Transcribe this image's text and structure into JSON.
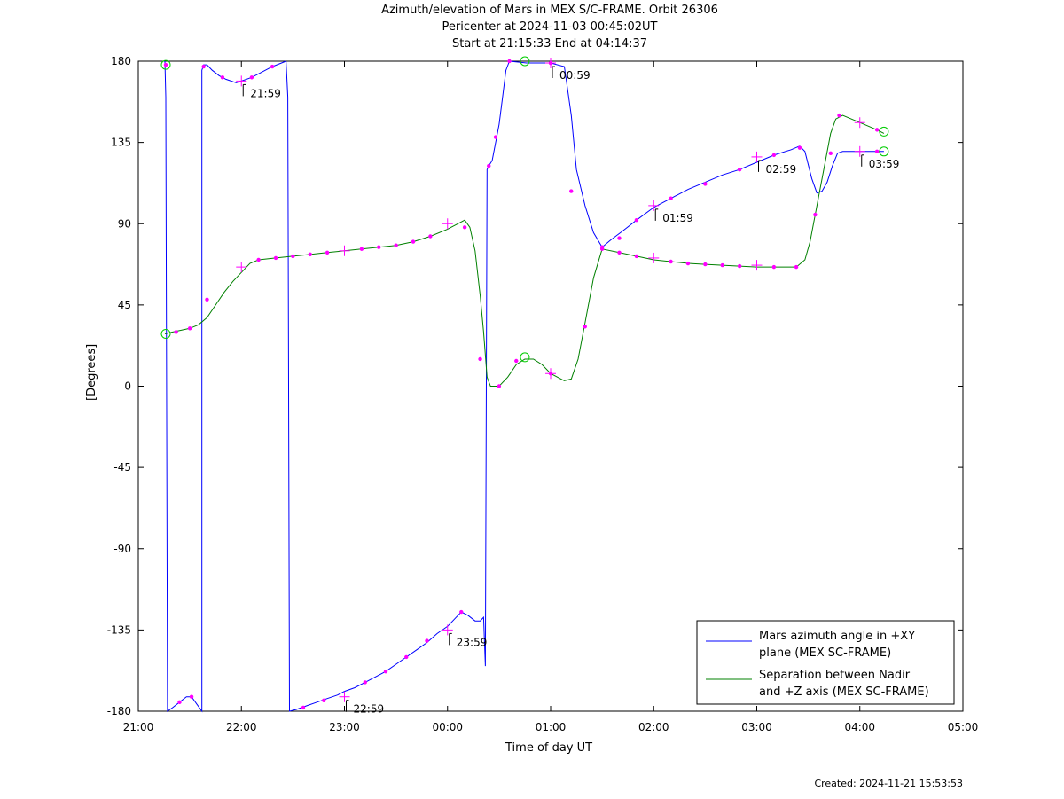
{
  "chart_data": {
    "type": "line",
    "title_lines": [
      "Azimuth/elevation of Mars in MEX S/C-FRAME.  Orbit 26306",
      "Pericenter at 2024-11-03 00:45:02UT",
      "Start at 21:15:33 End at 04:14:37"
    ],
    "xlabel": "Time of day UT",
    "ylabel": "[Degrees]",
    "xlim_minutes": [
      1260,
      1740
    ],
    "ylim": [
      -180,
      180
    ],
    "x_ticks": [
      {
        "minutes": 1260,
        "label": "21:00"
      },
      {
        "minutes": 1320,
        "label": "22:00"
      },
      {
        "minutes": 1380,
        "label": "23:00"
      },
      {
        "minutes": 1440,
        "label": "00:00"
      },
      {
        "minutes": 1500,
        "label": "01:00"
      },
      {
        "minutes": 1560,
        "label": "02:00"
      },
      {
        "minutes": 1620,
        "label": "03:00"
      },
      {
        "minutes": 1680,
        "label": "04:00"
      },
      {
        "minutes": 1740,
        "label": "05:00"
      }
    ],
    "y_ticks": [
      180,
      135,
      90,
      45,
      0,
      -45,
      -90,
      -135,
      -180
    ],
    "legend_position": "bottom-right",
    "series": [
      {
        "name_lines": [
          "Mars azimuth angle in +XY",
          "plane (MEX SC-FRAME)"
        ],
        "color": "#0000ff",
        "segments": [
          [
            [
              1275.5,
              180
            ],
            [
              1276,
              160
            ],
            [
              1277,
              -180
            ],
            [
              1280,
              -178
            ],
            [
              1284,
              -175
            ],
            [
              1288,
              -172
            ],
            [
              1291,
              -172
            ],
            [
              1294,
              -176
            ],
            [
              1297,
              -180
            ],
            [
              1297,
              175
            ],
            [
              1298,
              178
            ],
            [
              1300,
              178
            ],
            [
              1303,
              175
            ],
            [
              1307,
              172
            ],
            [
              1311,
              170
            ],
            [
              1317,
              168
            ],
            [
              1320,
              169
            ],
            [
              1326,
              171
            ],
            [
              1332,
              174
            ],
            [
              1338,
              177
            ],
            [
              1346,
              180
            ]
          ],
          [
            [
              1346,
              180
            ],
            [
              1347,
              160
            ],
            [
              1348,
              -180
            ],
            [
              1352,
              -179
            ],
            [
              1358,
              -177
            ],
            [
              1364,
              -175
            ],
            [
              1370,
              -173
            ],
            [
              1376,
              -171
            ],
            [
              1380,
              -169
            ],
            [
              1386,
              -167
            ],
            [
              1392,
              -164
            ],
            [
              1398,
              -161
            ],
            [
              1404,
              -158
            ],
            [
              1410,
              -154
            ],
            [
              1416,
              -150
            ],
            [
              1422,
              -146
            ],
            [
              1428,
              -142
            ],
            [
              1434,
              -137
            ],
            [
              1440,
              -133
            ],
            [
              1444,
              -129
            ],
            [
              1448,
              -125
            ],
            [
              1452,
              -127
            ],
            [
              1456,
              -130
            ],
            [
              1459,
              -130
            ],
            [
              1461,
              -128
            ],
            [
              1462,
              -155
            ],
            [
              1463,
              120
            ],
            [
              1464,
              122
            ],
            [
              1466,
              125
            ],
            [
              1468,
              135
            ],
            [
              1470,
              145
            ],
            [
              1472,
              160
            ],
            [
              1474,
              175
            ],
            [
              1476,
              180
            ],
            [
              1486,
              179
            ],
            [
              1500,
              179
            ],
            [
              1508,
              177
            ],
            [
              1512,
              150
            ],
            [
              1515,
              120
            ],
            [
              1520,
              100
            ],
            [
              1525,
              85
            ],
            [
              1530,
              77
            ],
            [
              1535,
              81
            ],
            [
              1542,
              86
            ],
            [
              1550,
              92
            ],
            [
              1560,
              99
            ],
            [
              1570,
              104
            ],
            [
              1580,
              109
            ],
            [
              1590,
              113
            ],
            [
              1600,
              117
            ],
            [
              1610,
              120
            ],
            [
              1620,
              124
            ],
            [
              1630,
              128
            ],
            [
              1640,
              131
            ],
            [
              1645,
              133
            ],
            [
              1648,
              130
            ],
            [
              1652,
              115
            ],
            [
              1655,
              107
            ],
            [
              1658,
              108
            ],
            [
              1661,
              113
            ],
            [
              1664,
              122
            ],
            [
              1667,
              129
            ],
            [
              1670,
              130
            ],
            [
              1680,
              130
            ],
            [
              1690,
              130
            ],
            [
              1694,
              130
            ]
          ]
        ]
      },
      {
        "name_lines": [
          "Separation between Nadir",
          "and +Z axis (MEX SC-FRAME)"
        ],
        "color": "#008000",
        "segments": [
          [
            [
              1275.5,
              29
            ],
            [
              1280,
              30
            ],
            [
              1285,
              31
            ],
            [
              1290,
              32
            ],
            [
              1295,
              34
            ],
            [
              1300,
              38
            ],
            [
              1305,
              45
            ],
            [
              1310,
              52
            ],
            [
              1315,
              58
            ],
            [
              1320,
              63
            ],
            [
              1325,
              68
            ],
            [
              1330,
              70
            ],
            [
              1340,
              71
            ],
            [
              1350,
              72
            ],
            [
              1360,
              73
            ],
            [
              1370,
              74
            ],
            [
              1380,
              75
            ],
            [
              1390,
              76
            ],
            [
              1400,
              77
            ],
            [
              1410,
              78
            ],
            [
              1420,
              80
            ],
            [
              1430,
              83
            ],
            [
              1440,
              87
            ],
            [
              1446,
              90
            ],
            [
              1450,
              92
            ],
            [
              1453,
              88
            ],
            [
              1456,
              75
            ],
            [
              1459,
              50
            ],
            [
              1461,
              30
            ],
            [
              1463,
              5
            ],
            [
              1465,
              0
            ],
            [
              1470,
              0
            ],
            [
              1475,
              5
            ],
            [
              1480,
              12
            ],
            [
              1485,
              15
            ],
            [
              1490,
              15
            ],
            [
              1495,
              12
            ],
            [
              1500,
              7
            ],
            [
              1508,
              3
            ],
            [
              1512,
              4
            ],
            [
              1516,
              15
            ],
            [
              1520,
              35
            ],
            [
              1525,
              60
            ],
            [
              1530,
              76
            ],
            [
              1540,
              74
            ],
            [
              1550,
              72
            ],
            [
              1560,
              70
            ],
            [
              1570,
              69
            ],
            [
              1580,
              68
            ],
            [
              1590,
              67.5
            ],
            [
              1600,
              67
            ],
            [
              1610,
              66.5
            ],
            [
              1620,
              66
            ],
            [
              1630,
              66
            ],
            [
              1643,
              66
            ],
            [
              1648,
              70
            ],
            [
              1651,
              80
            ],
            [
              1654,
              95
            ],
            [
              1657,
              110
            ],
            [
              1660,
              125
            ],
            [
              1663,
              140
            ],
            [
              1666,
              148
            ],
            [
              1670,
              150
            ],
            [
              1680,
              146
            ],
            [
              1690,
              142
            ],
            [
              1694,
              140
            ]
          ]
        ]
      }
    ],
    "dot_markers": [
      [
        1276,
        178
      ],
      [
        1284,
        -175
      ],
      [
        1291,
        -172
      ],
      [
        1298,
        177
      ],
      [
        1309,
        171
      ],
      [
        1326,
        171
      ],
      [
        1338,
        177
      ],
      [
        1356,
        -178
      ],
      [
        1368,
        -174
      ],
      [
        1392,
        -164
      ],
      [
        1404,
        -158
      ],
      [
        1416,
        -150
      ],
      [
        1428,
        -141
      ],
      [
        1448,
        -125
      ],
      [
        1464,
        122
      ],
      [
        1468,
        138
      ],
      [
        1476,
        180
      ],
      [
        1500,
        179
      ],
      [
        1512,
        108
      ],
      [
        1530,
        77
      ],
      [
        1540,
        82
      ],
      [
        1550,
        92
      ],
      [
        1570,
        104
      ],
      [
        1590,
        112
      ],
      [
        1610,
        120
      ],
      [
        1630,
        128
      ],
      [
        1645,
        132
      ],
      [
        1654,
        95
      ],
      [
        1663,
        129
      ],
      [
        1668,
        150
      ],
      [
        1690,
        130
      ],
      [
        1282,
        30
      ],
      [
        1290,
        32
      ],
      [
        1300,
        48
      ],
      [
        1330,
        70
      ],
      [
        1340,
        71
      ],
      [
        1350,
        72
      ],
      [
        1360,
        73
      ],
      [
        1370,
        74
      ],
      [
        1390,
        76
      ],
      [
        1400,
        77
      ],
      [
        1410,
        78
      ],
      [
        1420,
        80
      ],
      [
        1430,
        83
      ],
      [
        1450,
        88
      ],
      [
        1459,
        15
      ],
      [
        1470,
        0
      ],
      [
        1480,
        14
      ],
      [
        1500,
        7
      ],
      [
        1520,
        33
      ],
      [
        1530,
        76
      ],
      [
        1540,
        74
      ],
      [
        1550,
        72
      ],
      [
        1570,
        69
      ],
      [
        1580,
        68
      ],
      [
        1590,
        67.5
      ],
      [
        1600,
        67
      ],
      [
        1610,
        66.5
      ],
      [
        1630,
        66
      ],
      [
        1643,
        66
      ],
      [
        1690,
        142
      ]
    ],
    "cross_markers": [
      [
        1320,
        169
      ],
      [
        1380,
        -172
      ],
      [
        1440,
        -135
      ],
      [
        1500,
        179
      ],
      [
        1560,
        100
      ],
      [
        1620,
        127
      ],
      [
        1680,
        130
      ],
      [
        1320,
        66
      ],
      [
        1380,
        75
      ],
      [
        1440,
        90
      ],
      [
        1500,
        7
      ],
      [
        1560,
        71
      ],
      [
        1620,
        67
      ],
      [
        1680,
        146
      ]
    ],
    "circle_markers": [
      [
        1276,
        178
      ],
      [
        1276,
        29
      ],
      [
        1485,
        180
      ],
      [
        1485,
        16
      ],
      [
        1694,
        141
      ],
      [
        1694,
        130
      ]
    ],
    "annotations": [
      {
        "label": "21:59",
        "minutes": 1320,
        "value": 169
      },
      {
        "label": "22:59",
        "minutes": 1380,
        "value": -172
      },
      {
        "label": "23:59",
        "minutes": 1440,
        "value": -135
      },
      {
        "label": "00:59",
        "minutes": 1500,
        "value": 179
      },
      {
        "label": "01:59",
        "minutes": 1560,
        "value": 100
      },
      {
        "label": "02:59",
        "minutes": 1620,
        "value": 127
      },
      {
        "label": "03:59",
        "minutes": 1680,
        "value": 130
      }
    ]
  },
  "created_text": "Created: 2024-11-21 15:53:53"
}
